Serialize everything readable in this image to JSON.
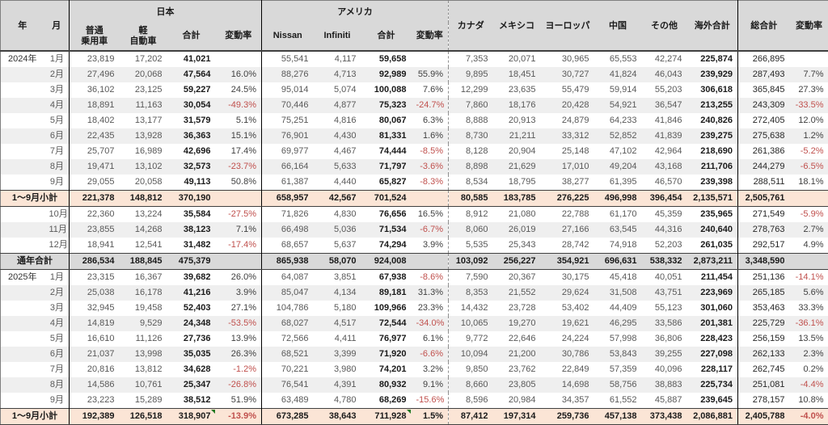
{
  "header": {
    "year": "年",
    "month": "月",
    "japan": "日本",
    "america": "アメリカ",
    "japan_sub": [
      "普通\n乗用車",
      "軽\n自動車",
      "合計",
      "変動率"
    ],
    "america_sub": [
      "Nissan",
      "Infiniti",
      "合計",
      "変動率"
    ],
    "canada": "カナダ",
    "mexico": "メキシコ",
    "europe": "ヨーロッパ",
    "china": "中国",
    "others": "その他",
    "overseas_total": "海外合計",
    "grand_total": "総合計",
    "variation": "変動率"
  },
  "colors": {
    "header_bg": "#d9d9d9",
    "band_bg": "#efefef",
    "subtotal_bg": "#fbe5d6",
    "grand_bg": "#d9d9d9",
    "negative": "#c0504d",
    "flag": "#217821"
  },
  "table": {
    "percent_cols": [
      3,
      7,
      15
    ],
    "bold_cols": [
      2,
      6,
      13
    ],
    "dark_cols": [
      14
    ],
    "vlines": {
      "0": "solid",
      "4": "solid",
      "8": "dotted",
      "14": "solid"
    },
    "rows": [
      {
        "type": "month",
        "shade": false,
        "year": "2024年",
        "month": "1月",
        "cells": [
          "23,819",
          "17,202",
          "41,021",
          "",
          "55,541",
          "4,117",
          "59,658",
          "",
          "7,353",
          "20,071",
          "30,965",
          "65,553",
          "42,274",
          "225,874",
          "266,895",
          ""
        ]
      },
      {
        "type": "month",
        "shade": true,
        "year": "",
        "month": "2月",
        "cells": [
          "27,496",
          "20,068",
          "47,564",
          "16.0%",
          "88,276",
          "4,713",
          "92,989",
          "55.9%",
          "9,895",
          "18,451",
          "30,727",
          "41,824",
          "46,043",
          "239,929",
          "287,493",
          "7.7%"
        ]
      },
      {
        "type": "month",
        "shade": false,
        "year": "",
        "month": "3月",
        "cells": [
          "36,102",
          "23,125",
          "59,227",
          "24.5%",
          "95,014",
          "5,074",
          "100,088",
          "7.6%",
          "12,299",
          "23,635",
          "55,479",
          "59,914",
          "55,203",
          "306,618",
          "365,845",
          "27.3%"
        ]
      },
      {
        "type": "month",
        "shade": true,
        "year": "",
        "month": "4月",
        "cells": [
          "18,891",
          "11,163",
          "30,054",
          "-49.3%",
          "70,446",
          "4,877",
          "75,323",
          "-24.7%",
          "7,860",
          "18,176",
          "20,428",
          "54,921",
          "36,547",
          "213,255",
          "243,309",
          "-33.5%"
        ]
      },
      {
        "type": "month",
        "shade": false,
        "year": "",
        "month": "5月",
        "cells": [
          "18,402",
          "13,177",
          "31,579",
          "5.1%",
          "75,251",
          "4,816",
          "80,067",
          "6.3%",
          "8,888",
          "20,913",
          "24,879",
          "64,233",
          "41,846",
          "240,826",
          "272,405",
          "12.0%"
        ]
      },
      {
        "type": "month",
        "shade": true,
        "year": "",
        "month": "6月",
        "cells": [
          "22,435",
          "13,928",
          "36,363",
          "15.1%",
          "76,901",
          "4,430",
          "81,331",
          "1.6%",
          "8,730",
          "21,211",
          "33,312",
          "52,852",
          "41,839",
          "239,275",
          "275,638",
          "1.2%"
        ]
      },
      {
        "type": "month",
        "shade": false,
        "year": "",
        "month": "7月",
        "cells": [
          "25,707",
          "16,989",
          "42,696",
          "17.4%",
          "69,977",
          "4,467",
          "74,444",
          "-8.5%",
          "8,128",
          "20,904",
          "25,148",
          "47,102",
          "42,964",
          "218,690",
          "261,386",
          "-5.2%"
        ]
      },
      {
        "type": "month",
        "shade": true,
        "year": "",
        "month": "8月",
        "cells": [
          "19,471",
          "13,102",
          "32,573",
          "-23.7%",
          "66,164",
          "5,633",
          "71,797",
          "-3.6%",
          "8,898",
          "21,629",
          "17,010",
          "49,204",
          "43,168",
          "211,706",
          "244,279",
          "-6.5%"
        ]
      },
      {
        "type": "month",
        "shade": false,
        "year": "",
        "month": "9月",
        "cells": [
          "29,055",
          "20,058",
          "49,113",
          "50.8%",
          "61,387",
          "4,440",
          "65,827",
          "-8.3%",
          "8,534",
          "18,795",
          "38,277",
          "61,395",
          "46,570",
          "239,398",
          "288,511",
          "18.1%"
        ]
      },
      {
        "type": "subtotal",
        "shade": false,
        "label": "1〜9月小計",
        "cells": [
          "221,378",
          "148,812",
          "370,190",
          "",
          "658,957",
          "42,567",
          "701,524",
          "",
          "80,585",
          "183,785",
          "276,225",
          "496,998",
          "396,454",
          "2,135,571",
          "2,505,761",
          ""
        ]
      },
      {
        "type": "month",
        "shade": false,
        "year": "",
        "month": "10月",
        "cells": [
          "22,360",
          "13,224",
          "35,584",
          "-27.5%",
          "71,826",
          "4,830",
          "76,656",
          "16.5%",
          "8,912",
          "21,080",
          "22,788",
          "61,170",
          "45,359",
          "235,965",
          "271,549",
          "-5.9%"
        ]
      },
      {
        "type": "month",
        "shade": true,
        "year": "",
        "month": "11月",
        "cells": [
          "23,855",
          "14,268",
          "38,123",
          "7.1%",
          "66,498",
          "5,036",
          "71,534",
          "-6.7%",
          "8,060",
          "26,019",
          "27,166",
          "63,545",
          "44,316",
          "240,640",
          "278,763",
          "2.7%"
        ]
      },
      {
        "type": "month",
        "shade": false,
        "year": "",
        "month": "12月",
        "cells": [
          "18,941",
          "12,541",
          "31,482",
          "-17.4%",
          "68,657",
          "5,637",
          "74,294",
          "3.9%",
          "5,535",
          "25,343",
          "28,742",
          "74,918",
          "52,203",
          "261,035",
          "292,517",
          "4.9%"
        ]
      },
      {
        "type": "grand",
        "shade": false,
        "label": "通年合計",
        "cells": [
          "286,534",
          "188,845",
          "475,379",
          "",
          "865,938",
          "58,070",
          "924,008",
          "",
          "103,092",
          "256,227",
          "354,921",
          "696,631",
          "538,332",
          "2,873,211",
          "3,348,590",
          ""
        ]
      },
      {
        "type": "month",
        "shade": false,
        "year": "2025年",
        "month": "1月",
        "cells": [
          "23,315",
          "16,367",
          "39,682",
          "26.0%",
          "64,087",
          "3,851",
          "67,938",
          "-8.6%",
          "7,590",
          "20,367",
          "30,175",
          "45,418",
          "40,051",
          "211,454",
          "251,136",
          "-14.1%"
        ]
      },
      {
        "type": "month",
        "shade": true,
        "year": "",
        "month": "2月",
        "cells": [
          "25,038",
          "16,178",
          "41,216",
          "3.9%",
          "85,047",
          "4,134",
          "89,181",
          "31.3%",
          "8,353",
          "21,552",
          "29,624",
          "31,508",
          "43,751",
          "223,969",
          "265,185",
          "5.6%"
        ]
      },
      {
        "type": "month",
        "shade": false,
        "year": "",
        "month": "3月",
        "cells": [
          "32,945",
          "19,458",
          "52,403",
          "27.1%",
          "104,786",
          "5,180",
          "109,966",
          "23.3%",
          "14,432",
          "23,728",
          "53,402",
          "44,409",
          "55,123",
          "301,060",
          "353,463",
          "33.3%"
        ]
      },
      {
        "type": "month",
        "shade": true,
        "year": "",
        "month": "4月",
        "cells": [
          "14,819",
          "9,529",
          "24,348",
          "-53.5%",
          "68,027",
          "4,517",
          "72,544",
          "-34.0%",
          "10,065",
          "19,270",
          "19,621",
          "46,295",
          "33,586",
          "201,381",
          "225,729",
          "-36.1%"
        ]
      },
      {
        "type": "month",
        "shade": false,
        "year": "",
        "month": "5月",
        "cells": [
          "16,610",
          "11,126",
          "27,736",
          "13.9%",
          "72,566",
          "4,411",
          "76,977",
          "6.1%",
          "9,772",
          "22,646",
          "24,224",
          "57,998",
          "36,806",
          "228,423",
          "256,159",
          "13.5%"
        ]
      },
      {
        "type": "month",
        "shade": true,
        "year": "",
        "month": "6月",
        "cells": [
          "21,037",
          "13,998",
          "35,035",
          "26.3%",
          "68,521",
          "3,399",
          "71,920",
          "-6.6%",
          "10,094",
          "21,200",
          "30,786",
          "53,843",
          "39,255",
          "227,098",
          "262,133",
          "2.3%"
        ]
      },
      {
        "type": "month",
        "shade": false,
        "year": "",
        "month": "7月",
        "cells": [
          "20,816",
          "13,812",
          "34,628",
          "-1.2%",
          "70,221",
          "3,980",
          "74,201",
          "3.2%",
          "9,850",
          "23,762",
          "22,849",
          "57,359",
          "40,096",
          "228,117",
          "262,745",
          "0.2%"
        ]
      },
      {
        "type": "month",
        "shade": true,
        "year": "",
        "month": "8月",
        "cells": [
          "14,586",
          "10,761",
          "25,347",
          "-26.8%",
          "76,541",
          "4,391",
          "80,932",
          "9.1%",
          "8,660",
          "23,805",
          "14,698",
          "58,756",
          "38,883",
          "225,734",
          "251,081",
          "-4.4%"
        ]
      },
      {
        "type": "month",
        "shade": false,
        "year": "",
        "month": "9月",
        "cells": [
          "23,223",
          "15,289",
          "38,512",
          "51.9%",
          "63,489",
          "4,780",
          "68,269",
          "-15.6%",
          "8,596",
          "20,984",
          "34,357",
          "61,552",
          "45,887",
          "239,645",
          "278,157",
          "10.8%"
        ]
      },
      {
        "type": "subtotal",
        "shade": false,
        "label": "1〜9月小計",
        "flags": [
          2,
          6
        ],
        "cells": [
          "192,389",
          "126,518",
          "318,907",
          "-13.9%",
          "673,285",
          "38,643",
          "711,928",
          "1.5%",
          "87,412",
          "197,314",
          "259,736",
          "457,138",
          "373,438",
          "2,086,881",
          "2,405,788",
          "-4.0%"
        ]
      }
    ]
  }
}
